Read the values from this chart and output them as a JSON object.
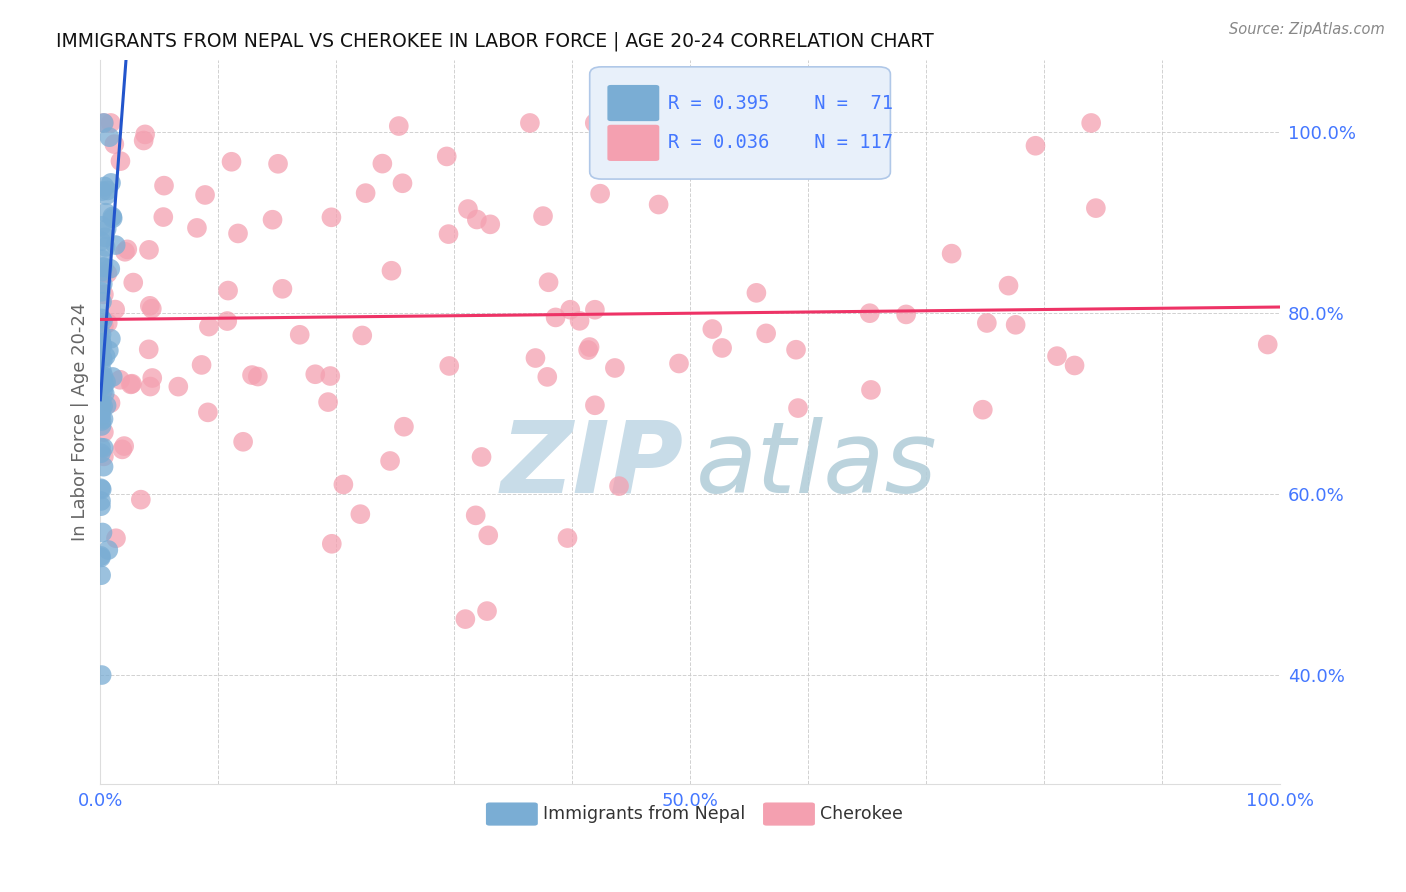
{
  "title": "IMMIGRANTS FROM NEPAL VS CHEROKEE IN LABOR FORCE | AGE 20-24 CORRELATION CHART",
  "source_text": "Source: ZipAtlas.com",
  "ylabel": "In Labor Force | Age 20-24",
  "xlim": [
    0.0,
    1.0
  ],
  "ylim": [
    0.28,
    1.08
  ],
  "nepal_R": 0.395,
  "nepal_N": 71,
  "cherokee_R": 0.036,
  "cherokee_N": 117,
  "nepal_color": "#7aadd4",
  "cherokee_color": "#f4a0b0",
  "nepal_line_color": "#2255cc",
  "cherokee_line_color": "#ee3366",
  "grid_color": "#cccccc",
  "title_color": "#111111",
  "axis_label_color": "#666666",
  "tick_color": "#4477ff",
  "watermark_zip_color": "#c8dce8",
  "watermark_atlas_color": "#b0ccd8",
  "legend_bg_color": "#e8f0fa",
  "legend_border_color": "#b0c8e8"
}
